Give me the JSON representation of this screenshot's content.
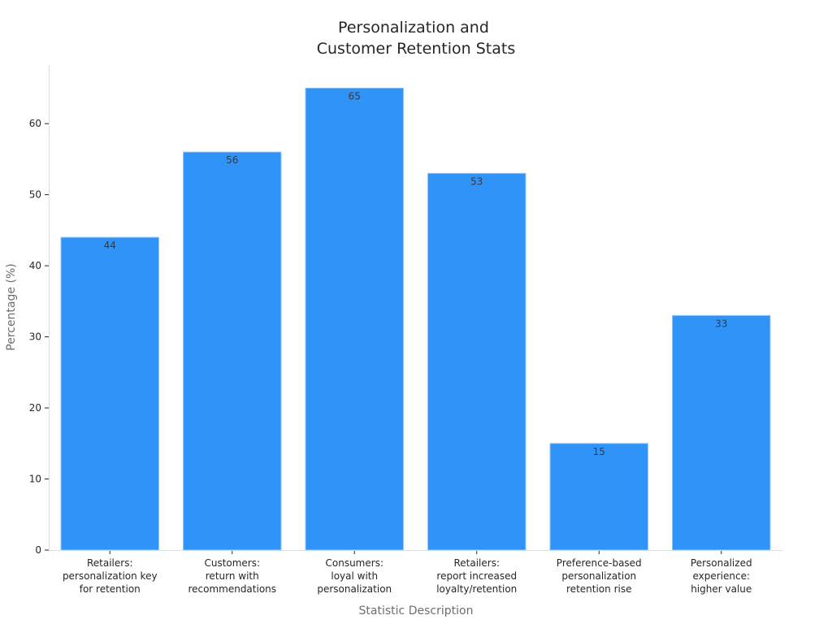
{
  "chart_data": {
    "type": "bar",
    "title": [
      "Personalization and",
      "Customer Retention Stats"
    ],
    "xlabel": "Statistic Description",
    "ylabel": "Percentage (%)",
    "ylim": [
      0,
      68.25
    ],
    "yticks": [
      0,
      10,
      20,
      30,
      40,
      50,
      60
    ],
    "categories": [
      [
        "Retailers:",
        "personalization key",
        "for retention"
      ],
      [
        "Customers:",
        "return with",
        "recommendations"
      ],
      [
        "Consumers:",
        "loyal with",
        "personalization"
      ],
      [
        "Retailers:",
        "report increased",
        "loyalty/retention"
      ],
      [
        "Preference-based",
        "personalization",
        "retention rise"
      ],
      [
        "Personalized",
        "experience:",
        "higher value"
      ]
    ],
    "values": [
      44,
      56,
      65,
      53,
      15,
      33
    ],
    "data_labels": [
      "44",
      "56",
      "65",
      "53",
      "15",
      "33"
    ],
    "bar_color": "#2f93f8",
    "grid": false,
    "legend": "none"
  }
}
